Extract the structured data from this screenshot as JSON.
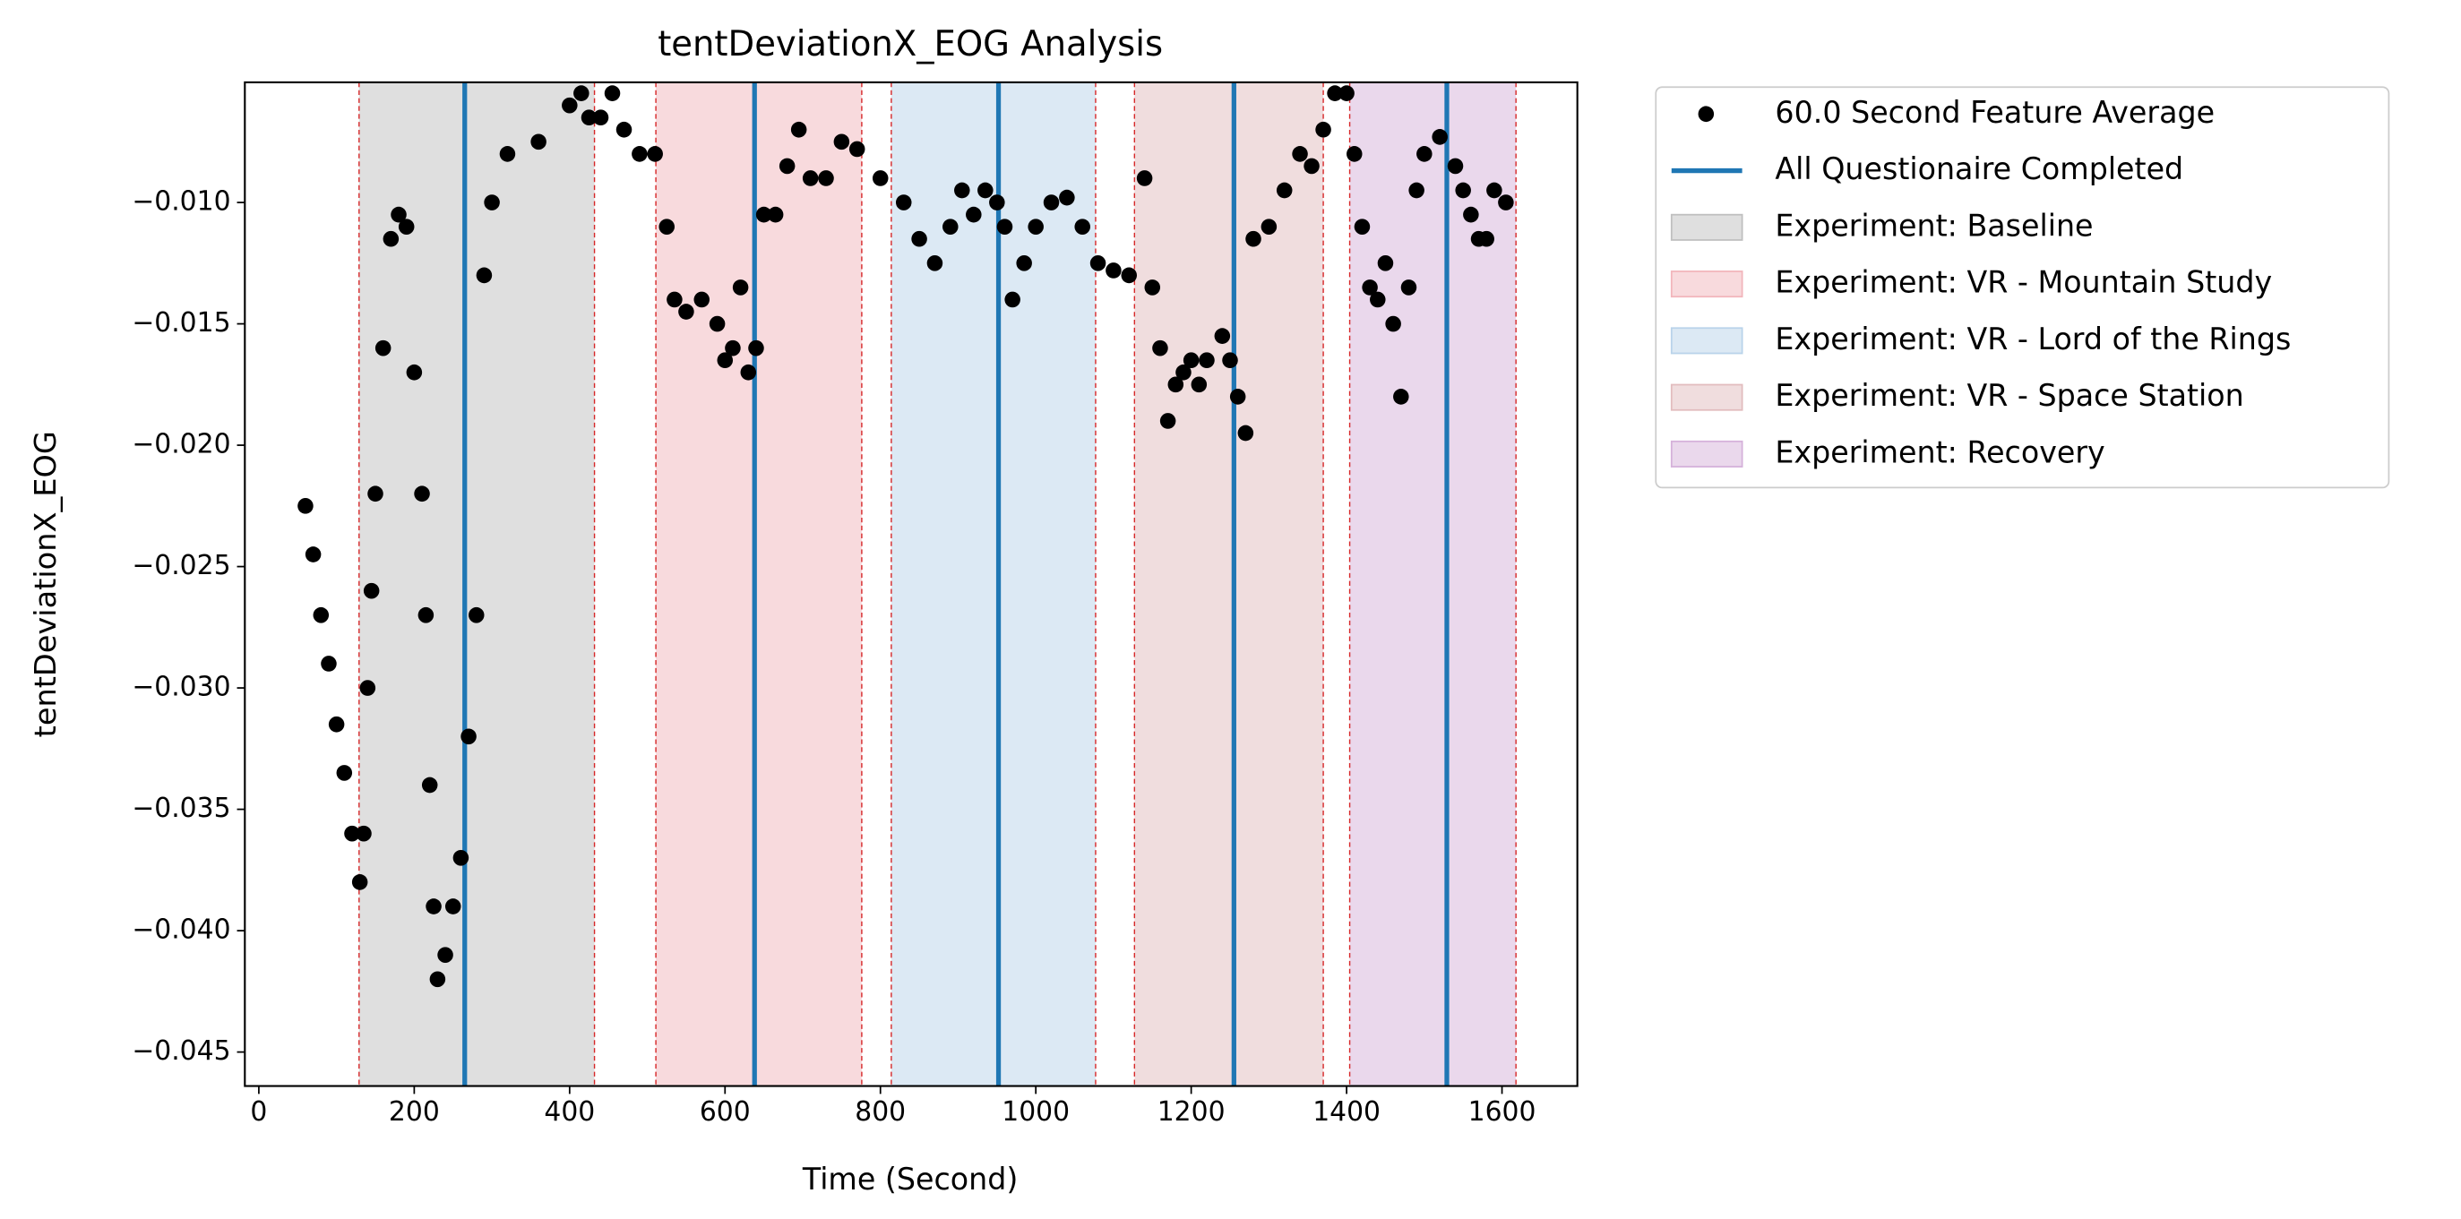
{
  "chart_data": {
    "type": "scatter",
    "title": "tentDeviationX_EOG Analysis",
    "x_label": "Time (Second)",
    "y_label": "tentDeviationX_EOG",
    "xlim": [
      -18,
      1697
    ],
    "ylim": [
      -0.0464,
      -0.00505
    ],
    "xticks": [
      0,
      200,
      400,
      600,
      800,
      1000,
      1200,
      1400,
      1600
    ],
    "yticks": [
      {
        "value": -0.045,
        "label": "−0.045"
      },
      {
        "value": -0.04,
        "label": "−0.040"
      },
      {
        "value": -0.035,
        "label": "−0.035"
      },
      {
        "value": -0.03,
        "label": "−0.030"
      },
      {
        "value": -0.025,
        "label": "−0.025"
      },
      {
        "value": -0.02,
        "label": "−0.020"
      },
      {
        "value": -0.015,
        "label": "−0.015"
      },
      {
        "value": -0.01,
        "label": "−0.010"
      }
    ],
    "series": [
      {
        "name": "60.0 Second Feature Average",
        "color": "#000000",
        "x": [
          60,
          70,
          80,
          90,
          100,
          110,
          120,
          130,
          135,
          140,
          145,
          150,
          160,
          170,
          180,
          190,
          200,
          210,
          215,
          220,
          225,
          230,
          240,
          250,
          260,
          270,
          280,
          290,
          300,
          320,
          360,
          400,
          415,
          425,
          440,
          455,
          470,
          490,
          510,
          525,
          535,
          550,
          570,
          590,
          600,
          610,
          620,
          630,
          640,
          650,
          665,
          680,
          695,
          710,
          730,
          750,
          770,
          800,
          830,
          850,
          870,
          890,
          905,
          920,
          935,
          950,
          960,
          970,
          985,
          1000,
          1020,
          1040,
          1060,
          1080,
          1100,
          1120,
          1140,
          1150,
          1160,
          1170,
          1180,
          1190,
          1200,
          1210,
          1220,
          1240,
          1250,
          1260,
          1270,
          1280,
          1300,
          1320,
          1340,
          1355,
          1370,
          1385,
          1400,
          1410,
          1420,
          1430,
          1440,
          1450,
          1460,
          1470,
          1480,
          1490,
          1500,
          1520,
          1540,
          1550,
          1560,
          1570,
          1580,
          1590,
          1605
        ],
        "values": [
          -0.0225,
          -0.0245,
          -0.027,
          -0.029,
          -0.0315,
          -0.0335,
          -0.036,
          -0.038,
          -0.036,
          -0.03,
          -0.026,
          -0.022,
          -0.016,
          -0.0115,
          -0.0105,
          -0.011,
          -0.017,
          -0.022,
          -0.027,
          -0.034,
          -0.039,
          -0.042,
          -0.041,
          -0.039,
          -0.037,
          -0.032,
          -0.027,
          -0.013,
          -0.01,
          -0.008,
          -0.0075,
          -0.006,
          -0.0055,
          -0.0065,
          -0.0065,
          -0.0055,
          -0.007,
          -0.008,
          -0.008,
          -0.011,
          -0.014,
          -0.0145,
          -0.014,
          -0.015,
          -0.0165,
          -0.016,
          -0.0135,
          -0.017,
          -0.016,
          -0.0105,
          -0.0105,
          -0.0085,
          -0.007,
          -0.009,
          -0.009,
          -0.0075,
          -0.0078,
          -0.009,
          -0.01,
          -0.0115,
          -0.0125,
          -0.011,
          -0.0095,
          -0.0105,
          -0.0095,
          -0.01,
          -0.011,
          -0.014,
          -0.0125,
          -0.011,
          -0.01,
          -0.0098,
          -0.011,
          -0.0125,
          -0.0128,
          -0.013,
          -0.009,
          -0.0135,
          -0.016,
          -0.019,
          -0.0175,
          -0.017,
          -0.0165,
          -0.0175,
          -0.0165,
          -0.0155,
          -0.0165,
          -0.018,
          -0.0195,
          -0.0115,
          -0.011,
          -0.0095,
          -0.008,
          -0.0085,
          -0.007,
          -0.0055,
          -0.0055,
          -0.008,
          -0.011,
          -0.0135,
          -0.014,
          -0.0125,
          -0.015,
          -0.018,
          -0.0135,
          -0.0095,
          -0.008,
          -0.0073,
          -0.0085,
          -0.0095,
          -0.0105,
          -0.0115,
          -0.0115,
          -0.0095,
          -0.01
        ]
      }
    ],
    "vlines": {
      "name": "All Questionaire Completed",
      "color": "#1f77b4",
      "x": [
        265,
        638,
        952,
        1255,
        1529
      ]
    },
    "spans": [
      {
        "name": "Experiment: Baseline",
        "start": 129,
        "end": 432,
        "color": "#bfbfbf"
      },
      {
        "name": "Experiment: VR - Mountain Study",
        "start": 511,
        "end": 776,
        "color": "#f2b5bb"
      },
      {
        "name": "Experiment: VR - Lord of the Rings",
        "start": 814,
        "end": 1077,
        "color": "#b9d3ea"
      },
      {
        "name": "Experiment: VR - Space Station",
        "start": 1127,
        "end": 1370,
        "color": "#e2bcbe"
      },
      {
        "name": "Experiment: Recovery",
        "start": 1404,
        "end": 1618,
        "color": "#d5b1da"
      }
    ]
  }
}
